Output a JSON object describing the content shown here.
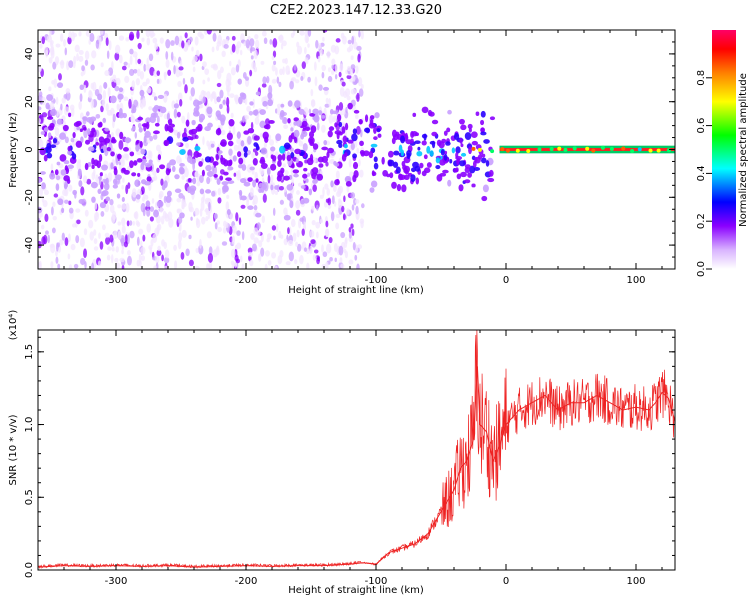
{
  "title": "C2E2.2023.147.12.33.G20",
  "chart_data": [
    {
      "type": "heatmap",
      "xlabel": "Height of straight line (km)",
      "ylabel": "Frequency (Hz)",
      "xlim": [
        -360,
        130
      ],
      "ylim": [
        -50,
        50
      ],
      "x_ticks": [
        -300,
        -200,
        -100,
        0,
        100
      ],
      "x_tick_labels": [
        "-300",
        "-200",
        "-100",
        "0",
        "100"
      ],
      "y_ticks": [
        -40,
        -20,
        0,
        20,
        40
      ],
      "y_tick_labels": [
        "-40",
        "-20",
        "0",
        "20",
        "40"
      ],
      "colorbar": {
        "label": "Normalized spectral amplitude",
        "range": [
          0,
          1
        ],
        "ticks": [
          0.0,
          0.2,
          0.4,
          0.6,
          0.8
        ],
        "tick_labels": [
          "0.0",
          "0.2",
          "0.4",
          "0.6",
          "0.8"
        ],
        "colors": [
          "#ffffff",
          "#a000ff",
          "#0000ff",
          "#00ffff",
          "#00ff00",
          "#ffff00",
          "#ff8000",
          "#ff0000",
          "#ff0066"
        ]
      },
      "features": {
        "noise_band_x": [
          -360,
          -110
        ],
        "signal_center_hz": 0,
        "signal_band_x": [
          -130,
          130
        ]
      }
    },
    {
      "type": "line",
      "xlabel": "Height of straight line (km)",
      "ylabel": "SNR (10 * v/v)",
      "scale_label": "(x10⁴)",
      "xlim": [
        -360,
        130
      ],
      "ylim": [
        0,
        1.65
      ],
      "x_ticks": [
        -300,
        -200,
        -100,
        0,
        100
      ],
      "x_tick_labels": [
        "-300",
        "-200",
        "-100",
        "0",
        "100"
      ],
      "y_ticks": [
        0.0,
        0.5,
        1.0,
        1.5
      ],
      "y_tick_labels": [
        "0.0",
        "0.5",
        "1.0",
        "1.5"
      ],
      "series": [
        {
          "color": "#ee2222",
          "x": [
            -360,
            -340,
            -320,
            -300,
            -280,
            -260,
            -240,
            -220,
            -200,
            -180,
            -160,
            -140,
            -120,
            -110,
            -100,
            -90,
            -80,
            -70,
            -60,
            -50,
            -40,
            -35,
            -30,
            -25,
            -22,
            -20,
            -15,
            -10,
            -5,
            0,
            5,
            10,
            20,
            30,
            40,
            50,
            60,
            70,
            80,
            90,
            100,
            110,
            115,
            120,
            125,
            130
          ],
          "y": [
            0.02,
            0.03,
            0.025,
            0.03,
            0.025,
            0.03,
            0.02,
            0.025,
            0.03,
            0.025,
            0.03,
            0.03,
            0.04,
            0.05,
            0.04,
            0.12,
            0.15,
            0.18,
            0.25,
            0.4,
            0.55,
            0.7,
            0.75,
            0.9,
            1.4,
            1.0,
            0.95,
            0.75,
            0.85,
            1.0,
            1.05,
            1.1,
            1.15,
            1.2,
            1.1,
            1.15,
            1.15,
            1.2,
            1.15,
            1.1,
            1.12,
            1.1,
            1.15,
            1.22,
            1.18,
            1.02
          ]
        }
      ]
    }
  ]
}
